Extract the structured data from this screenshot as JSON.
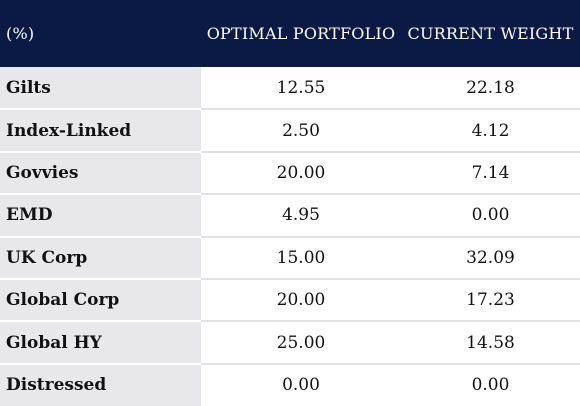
{
  "table": {
    "headers": [
      "(%)",
      "OPTIMAL PORTFOLIO",
      "CURRENT WEIGHT"
    ],
    "rows": [
      {
        "label": "Gilts",
        "optimal": "12.55",
        "current": "22.18"
      },
      {
        "label": "Index-Linked",
        "optimal": "2.50",
        "current": "4.12"
      },
      {
        "label": "Govvies",
        "optimal": "20.00",
        "current": "7.14"
      },
      {
        "label": "EMD",
        "optimal": "4.95",
        "current": "0.00"
      },
      {
        "label": "UK Corp",
        "optimal": "15.00",
        "current": "32.09"
      },
      {
        "label": "Global Corp",
        "optimal": "20.00",
        "current": "17.23"
      },
      {
        "label": "Global HY",
        "optimal": "25.00",
        "current": "14.58"
      },
      {
        "label": "Distressed",
        "optimal": "0.00",
        "current": "0.00"
      }
    ]
  },
  "colors": {
    "header_background": "#0b1a45",
    "header_text": "#ffffff",
    "label_cell_background": "#e8e8eb",
    "row_divider": "#e2e2e4"
  }
}
